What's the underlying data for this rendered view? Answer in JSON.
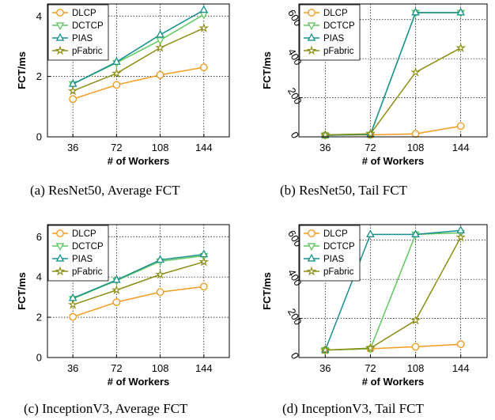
{
  "colors": {
    "DLCP": "#f59b1f",
    "DCTCP": "#5fc85f",
    "PIAS": "#178f8f",
    "pFabric": "#8c8c12"
  },
  "markers": {
    "DLCP": "circle",
    "DCTCP": "triangle-down",
    "PIAS": "triangle-up",
    "pFabric": "star"
  },
  "captions": [
    "(a)  ResNet50, Average FCT",
    "(b)  ResNet50, Tail FCT",
    "(c)  InceptionV3, Average FCT",
    "(d)  InceptionV3, Tail FCT"
  ],
  "chart_data": [
    {
      "type": "line",
      "xlabel": "# of Workers",
      "ylabel": "FCT/ms",
      "x": [
        36,
        72,
        108,
        144
      ],
      "xticks": [
        "36",
        "72",
        "108",
        "144"
      ],
      "ylim": [
        0,
        4.4
      ],
      "yticks": [
        0,
        2,
        4
      ],
      "ytick_labels": [
        "0",
        "2",
        "4"
      ],
      "rotated_ytick_labels": false,
      "grid": true,
      "legend": "top-left",
      "series": [
        {
          "name": "DLCP",
          "values": [
            1.25,
            1.72,
            2.05,
            2.3
          ]
        },
        {
          "name": "DCTCP",
          "values": [
            1.75,
            2.45,
            3.2,
            4.05
          ]
        },
        {
          "name": "PIAS",
          "values": [
            1.75,
            2.48,
            3.38,
            4.2
          ]
        },
        {
          "name": "pFabric",
          "values": [
            1.52,
            2.1,
            2.95,
            3.6
          ]
        }
      ]
    },
    {
      "type": "line",
      "xlabel": "# of Workers",
      "ylabel": "FCT/ms",
      "x": [
        36,
        72,
        108,
        144
      ],
      "xticks": [
        "36",
        "72",
        "108",
        "144"
      ],
      "ylim": [
        0,
        680
      ],
      "yticks": [
        0,
        200,
        400,
        600
      ],
      "ytick_labels": [
        "0",
        "200",
        "400",
        "600"
      ],
      "rotated_ytick_labels": true,
      "grid": true,
      "legend": "top-left",
      "series": [
        {
          "name": "DLCP",
          "values": [
            8,
            10,
            15,
            55
          ]
        },
        {
          "name": "DCTCP",
          "values": [
            8,
            12,
            635,
            635
          ]
        },
        {
          "name": "PIAS",
          "values": [
            8,
            12,
            636,
            636
          ]
        },
        {
          "name": "pFabric",
          "values": [
            10,
            15,
            330,
            455
          ]
        }
      ]
    },
    {
      "type": "line",
      "xlabel": "# of Workers",
      "ylabel": "FCT/ms",
      "x": [
        36,
        72,
        108,
        144
      ],
      "xticks": [
        "36",
        "72",
        "108",
        "144"
      ],
      "ylim": [
        0,
        6.6
      ],
      "yticks": [
        0,
        2,
        4,
        6
      ],
      "ytick_labels": [
        "0",
        "2",
        "4",
        "6"
      ],
      "rotated_ytick_labels": false,
      "grid": true,
      "legend": "top-left",
      "series": [
        {
          "name": "DLCP",
          "values": [
            2.02,
            2.75,
            3.25,
            3.52
          ]
        },
        {
          "name": "DCTCP",
          "values": [
            2.92,
            3.82,
            4.78,
            5.05
          ]
        },
        {
          "name": "PIAS",
          "values": [
            2.95,
            3.85,
            4.85,
            5.12
          ]
        },
        {
          "name": "pFabric",
          "values": [
            2.62,
            3.35,
            4.12,
            4.75
          ]
        }
      ]
    },
    {
      "type": "line",
      "xlabel": "# of Workers",
      "ylabel": "FCT/ms",
      "x": [
        36,
        72,
        108,
        144
      ],
      "xticks": [
        "36",
        "72",
        "108",
        "144"
      ],
      "ylim": [
        0,
        680
      ],
      "yticks": [
        0,
        200,
        400,
        600
      ],
      "ytick_labels": [
        "0",
        "200",
        "400",
        "600"
      ],
      "rotated_ytick_labels": true,
      "grid": true,
      "legend": "top-left",
      "series": [
        {
          "name": "DLCP",
          "values": [
            38,
            45,
            55,
            68
          ]
        },
        {
          "name": "DCTCP",
          "values": [
            38,
            45,
            630,
            638
          ]
        },
        {
          "name": "PIAS",
          "values": [
            38,
            630,
            630,
            650
          ]
        },
        {
          "name": "pFabric",
          "values": [
            38,
            48,
            190,
            615
          ]
        }
      ]
    }
  ]
}
